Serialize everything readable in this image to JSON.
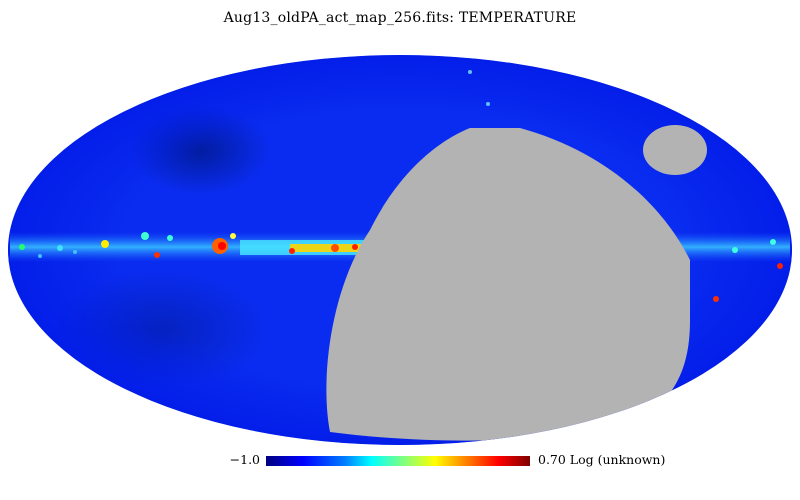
{
  "title": "Aug13_oldPA_act_map_256.fits: TEMPERATURE",
  "colorbar": {
    "min_label": "−1.0",
    "max_label": "0.70 Log (unknown)",
    "min_value": -1.0,
    "max_value": 0.7,
    "scale": "log",
    "colormap": "jet"
  },
  "map": {
    "projection": "Mollweide",
    "background_color": "#0a2cf0",
    "masked_color": "#b3b3b3",
    "plane_color": "#37a8ff"
  }
}
